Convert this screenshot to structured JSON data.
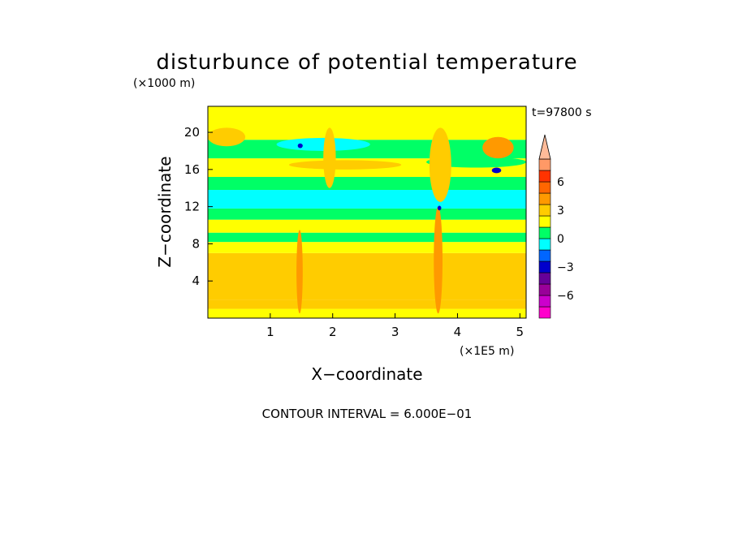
{
  "chart_data": {
    "type": "heatmap",
    "title": "disturbunce of potential temperature",
    "time_label": "t=97800 s",
    "xlabel": "X−coordinate",
    "ylabel": "Z−coordinate",
    "x_unit": "(×1E5 m)",
    "y_unit": "(×1000 m)",
    "xlim": [
      0,
      5.1
    ],
    "ylim": [
      0,
      22.8
    ],
    "x_ticks": [
      "1",
      "2",
      "3",
      "4",
      "5"
    ],
    "x_tick_values": [
      1,
      2,
      3,
      4,
      5
    ],
    "y_ticks": [
      "4",
      "8",
      "12",
      "16",
      "20"
    ],
    "y_tick_values": [
      4,
      8,
      12,
      16,
      20
    ],
    "contour_note": "CONTOUR INTERVAL = 6.000E−01",
    "colorbar": {
      "labels": [
        "6",
        "3",
        "0",
        "−3",
        "−6"
      ],
      "label_values": [
        6,
        3,
        0,
        -3,
        -6
      ],
      "vmin": -8.4,
      "vmax": 8.4,
      "levels": [
        {
          "from": -8.4,
          "to": -7.2,
          "color": "#ff00cc"
        },
        {
          "from": -7.2,
          "to": -6.0,
          "color": "#cc00cc"
        },
        {
          "from": -6.0,
          "to": -4.8,
          "color": "#990099"
        },
        {
          "from": -4.8,
          "to": -3.6,
          "color": "#660099"
        },
        {
          "from": -3.6,
          "to": -2.4,
          "color": "#0000cc"
        },
        {
          "from": -2.4,
          "to": -1.2,
          "color": "#0066ff"
        },
        {
          "from": -1.2,
          "to": 0.0,
          "color": "#00ffff"
        },
        {
          "from": 0.0,
          "to": 1.2,
          "color": "#00ff66"
        },
        {
          "from": 1.2,
          "to": 2.4,
          "color": "#ffff00"
        },
        {
          "from": 2.4,
          "to": 3.6,
          "color": "#ffcc00"
        },
        {
          "from": 3.6,
          "to": 4.8,
          "color": "#ff9900"
        },
        {
          "from": 4.8,
          "to": 6.0,
          "color": "#ff6600"
        },
        {
          "from": 6.0,
          "to": 7.2,
          "color": "#ff3300"
        },
        {
          "from": 7.2,
          "to": 8.4,
          "color": "#ff9966"
        }
      ],
      "over_color": "#ffbb99"
    },
    "field_bands": [
      {
        "z0": 0.0,
        "z1": 1.0,
        "value": 1.5
      },
      {
        "z0": 1.0,
        "z1": 2.0,
        "value": 2.6
      },
      {
        "z0": 2.0,
        "z1": 7.0,
        "value": 2.8
      },
      {
        "z0": 7.0,
        "z1": 8.2,
        "value": 1.6
      },
      {
        "z0": 8.2,
        "z1": 9.2,
        "value": 0.6
      },
      {
        "z0": 9.2,
        "z1": 10.6,
        "value": 1.5
      },
      {
        "z0": 10.6,
        "z1": 11.8,
        "value": 0.6
      },
      {
        "z0": 11.8,
        "z1": 13.8,
        "value": -0.6
      },
      {
        "z0": 13.8,
        "z1": 15.2,
        "value": 0.6
      },
      {
        "z0": 15.2,
        "z1": 17.2,
        "value": 1.6
      },
      {
        "z0": 17.2,
        "z1": 19.2,
        "value": 0.6
      },
      {
        "z0": 19.2,
        "z1": 22.8,
        "value": 1.6
      }
    ],
    "field_anomalies": [
      {
        "x0": 0.0,
        "x1": 5.1,
        "z0": 3.2,
        "z1": 6.8,
        "value": 3.0
      },
      {
        "x0": 0.0,
        "x1": 0.6,
        "z0": 18.5,
        "z1": 20.5,
        "value": 3.0
      },
      {
        "x0": 1.1,
        "x1": 2.6,
        "z0": 18.0,
        "z1": 19.4,
        "value": -0.6
      },
      {
        "x0": 1.3,
        "x1": 3.1,
        "z0": 16.0,
        "z1": 17.0,
        "value": 2.8
      },
      {
        "x0": 3.5,
        "x1": 5.1,
        "z0": 16.2,
        "z1": 17.4,
        "value": 0.6
      },
      {
        "x0": 4.4,
        "x1": 4.9,
        "z0": 17.2,
        "z1": 19.5,
        "value": 3.6
      },
      {
        "x0": 2.0,
        "x1": 4.2,
        "z0": 12.0,
        "z1": 13.4,
        "value": -0.6
      },
      {
        "x0": 1.42,
        "x1": 1.52,
        "z0": 0.5,
        "z1": 9.5,
        "value": 4.2
      },
      {
        "x0": 3.62,
        "x1": 3.76,
        "z0": 0.5,
        "z1": 12.0,
        "value": 4.2
      },
      {
        "x0": 3.55,
        "x1": 3.9,
        "z0": 12.5,
        "z1": 20.5,
        "value": 2.8
      },
      {
        "x0": 1.85,
        "x1": 2.05,
        "z0": 14.0,
        "z1": 20.5,
        "value": 2.8
      },
      {
        "x0": 1.44,
        "x1": 1.52,
        "z0": 18.3,
        "z1": 18.8,
        "value": -3.0
      },
      {
        "x0": 4.55,
        "x1": 4.7,
        "z0": 15.6,
        "z1": 16.2,
        "value": -3.0
      },
      {
        "x0": 3.68,
        "x1": 3.74,
        "z0": 11.6,
        "z1": 12.1,
        "value": -3.0
      }
    ]
  }
}
